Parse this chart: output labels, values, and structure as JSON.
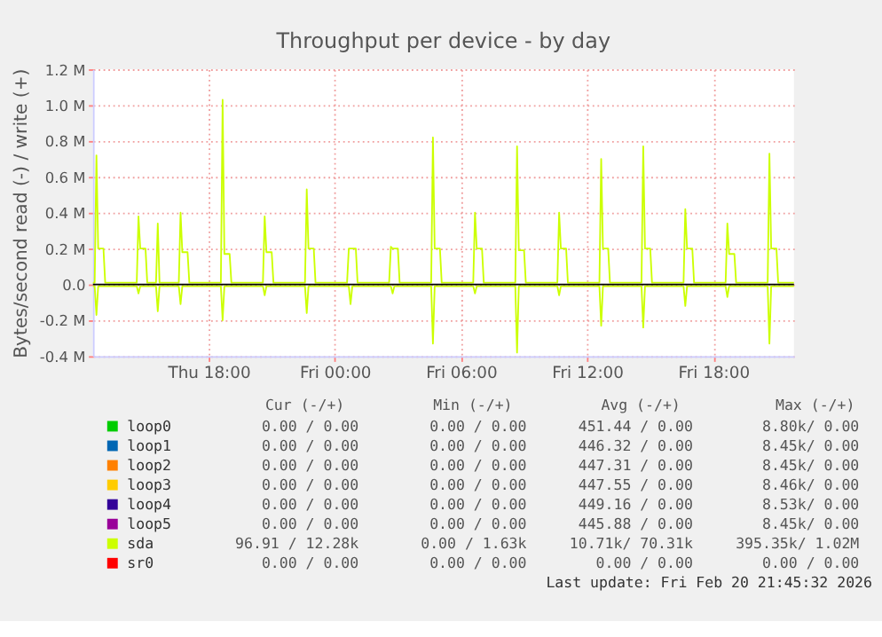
{
  "chart_data": {
    "type": "line",
    "title": "Throughput per device - by day",
    "ylabel": "Bytes/second read (-) / write (+)",
    "xlim": [
      "2026-02-19T12:30",
      "2026-02-20T21:50"
    ],
    "xticks": [
      {
        "value": "2026-02-19T18:00",
        "label": "Thu 18:00"
      },
      {
        "value": "2026-02-20T00:00",
        "label": "Fri 00:00"
      },
      {
        "value": "2026-02-20T06:00",
        "label": "Fri 06:00"
      },
      {
        "value": "2026-02-20T12:00",
        "label": "Fri 12:00"
      },
      {
        "value": "2026-02-20T18:00",
        "label": "Fri 18:00"
      }
    ],
    "ylim": [
      -400000,
      1200000
    ],
    "yticks": [
      {
        "value": -400000,
        "label": "-0.4 M"
      },
      {
        "value": -200000,
        "label": "-0.2 M"
      },
      {
        "value": 0,
        "label": "0.0"
      },
      {
        "value": 200000,
        "label": "0.2 M"
      },
      {
        "value": 400000,
        "label": "0.4 M"
      },
      {
        "value": 600000,
        "label": "0.6 M"
      },
      {
        "value": 800000,
        "label": "0.8 M"
      },
      {
        "value": 1000000,
        "label": "1.0 M"
      },
      {
        "value": 1200000,
        "label": "1.2 M"
      }
    ],
    "grid": true,
    "legend": "bottom",
    "ref_lines": [
      {
        "axis": "y",
        "value": 0,
        "color": "#000000"
      }
    ],
    "series": [
      {
        "name": "loop0",
        "color": "#00cc00"
      },
      {
        "name": "loop1",
        "color": "#0066b3"
      },
      {
        "name": "loop2",
        "color": "#ff8000"
      },
      {
        "name": "loop3",
        "color": "#ffcc00"
      },
      {
        "name": "loop4",
        "color": "#330099"
      },
      {
        "name": "loop5",
        "color": "#990099"
      },
      {
        "name": "sda",
        "color": "#ccff00",
        "x": [
          "2026-02-19T12:30",
          "2026-02-19T12:35",
          "2026-02-19T12:40",
          "2026-02-19T12:45",
          "2026-02-19T13:00",
          "2026-02-19T13:05",
          "2026-02-19T14:35",
          "2026-02-19T14:40",
          "2026-02-19T14:45",
          "2026-02-19T15:00",
          "2026-02-19T15:05",
          "2026-02-19T15:30",
          "2026-02-19T15:35",
          "2026-02-19T15:40",
          "2026-02-19T16:35",
          "2026-02-19T16:40",
          "2026-02-19T16:45",
          "2026-02-19T17:00",
          "2026-02-19T17:05",
          "2026-02-19T18:35",
          "2026-02-19T18:40",
          "2026-02-19T18:45",
          "2026-02-19T19:00",
          "2026-02-19T19:05",
          "2026-02-19T20:35",
          "2026-02-19T20:40",
          "2026-02-19T20:45",
          "2026-02-19T21:00",
          "2026-02-19T21:05",
          "2026-02-19T22:35",
          "2026-02-19T22:40",
          "2026-02-19T22:45",
          "2026-02-19T23:00",
          "2026-02-19T23:05",
          "2026-02-20T00:35",
          "2026-02-20T00:40",
          "2026-02-20T00:45",
          "2026-02-20T01:00",
          "2026-02-20T01:05",
          "2026-02-20T02:35",
          "2026-02-20T02:40",
          "2026-02-20T02:45",
          "2026-02-20T03:00",
          "2026-02-20T03:05",
          "2026-02-20T04:35",
          "2026-02-20T04:40",
          "2026-02-20T04:45",
          "2026-02-20T05:00",
          "2026-02-20T05:05",
          "2026-02-20T06:35",
          "2026-02-20T06:40",
          "2026-02-20T06:45",
          "2026-02-20T07:00",
          "2026-02-20T07:05",
          "2026-02-20T08:35",
          "2026-02-20T08:40",
          "2026-02-20T08:45",
          "2026-02-20T09:00",
          "2026-02-20T09:05",
          "2026-02-20T10:35",
          "2026-02-20T10:40",
          "2026-02-20T10:45",
          "2026-02-20T11:00",
          "2026-02-20T11:05",
          "2026-02-20T12:35",
          "2026-02-20T12:40",
          "2026-02-20T12:45",
          "2026-02-20T13:00",
          "2026-02-20T13:05",
          "2026-02-20T14:35",
          "2026-02-20T14:40",
          "2026-02-20T14:45",
          "2026-02-20T15:00",
          "2026-02-20T15:05",
          "2026-02-20T16:35",
          "2026-02-20T16:40",
          "2026-02-20T16:45",
          "2026-02-20T17:00",
          "2026-02-20T17:05",
          "2026-02-20T18:35",
          "2026-02-20T18:40",
          "2026-02-20T18:45",
          "2026-02-20T19:00",
          "2026-02-20T19:05",
          "2026-02-20T20:35",
          "2026-02-20T20:40",
          "2026-02-20T20:45",
          "2026-02-20T21:00",
          "2026-02-20T21:05",
          "2026-02-20T21:50"
        ],
        "values": [
          10000,
          10000,
          720000,
          200000,
          200000,
          10000,
          10000,
          380000,
          200000,
          200000,
          10000,
          10000,
          340000,
          10000,
          10000,
          400000,
          180000,
          180000,
          10000,
          10000,
          1030000,
          170000,
          170000,
          10000,
          10000,
          380000,
          180000,
          180000,
          10000,
          10000,
          530000,
          200000,
          200000,
          10000,
          10000,
          200000,
          200000,
          200000,
          10000,
          10000,
          210000,
          200000,
          200000,
          10000,
          10000,
          820000,
          200000,
          200000,
          10000,
          10000,
          400000,
          200000,
          200000,
          10000,
          10000,
          770000,
          190000,
          190000,
          10000,
          10000,
          400000,
          200000,
          200000,
          10000,
          10000,
          700000,
          200000,
          200000,
          10000,
          10000,
          770000,
          200000,
          200000,
          10000,
          10000,
          420000,
          200000,
          200000,
          10000,
          10000,
          340000,
          170000,
          170000,
          10000,
          10000,
          730000,
          200000,
          200000,
          10000,
          10000
        ]
      },
      {
        "name": "sr0",
        "color": "#ff0000"
      },
      {
        "color": "#ccff00",
        "x": [
          "2026-02-19T12:30",
          "2026-02-19T12:35",
          "2026-02-19T12:40",
          "2026-02-19T12:45",
          "2026-02-19T14:35",
          "2026-02-19T14:40",
          "2026-02-19T14:45",
          "2026-02-19T15:30",
          "2026-02-19T15:35",
          "2026-02-19T15:40",
          "2026-02-19T16:35",
          "2026-02-19T16:40",
          "2026-02-19T16:45",
          "2026-02-19T18:35",
          "2026-02-19T18:40",
          "2026-02-19T18:45",
          "2026-02-19T20:35",
          "2026-02-19T20:40",
          "2026-02-19T20:45",
          "2026-02-19T22:35",
          "2026-02-19T22:40",
          "2026-02-19T22:45",
          "2026-02-20T00:40",
          "2026-02-20T00:45",
          "2026-02-20T00:50",
          "2026-02-20T02:40",
          "2026-02-20T02:45",
          "2026-02-20T02:50",
          "2026-02-20T04:35",
          "2026-02-20T04:40",
          "2026-02-20T04:45",
          "2026-02-20T06:35",
          "2026-02-20T06:40",
          "2026-02-20T06:45",
          "2026-02-20T08:35",
          "2026-02-20T08:40",
          "2026-02-20T08:45",
          "2026-02-20T10:35",
          "2026-02-20T10:40",
          "2026-02-20T10:45",
          "2026-02-20T12:35",
          "2026-02-20T12:40",
          "2026-02-20T12:45",
          "2026-02-20T14:35",
          "2026-02-20T14:40",
          "2026-02-20T14:45",
          "2026-02-20T16:35",
          "2026-02-20T16:40",
          "2026-02-20T16:45",
          "2026-02-20T18:35",
          "2026-02-20T18:40",
          "2026-02-20T18:45",
          "2026-02-20T20:35",
          "2026-02-20T20:40",
          "2026-02-20T20:45",
          "2026-02-20T21:50"
        ],
        "values": [
          -10000,
          -10000,
          -170000,
          -10000,
          -10000,
          -50000,
          -10000,
          -10000,
          -150000,
          -10000,
          -10000,
          -110000,
          -10000,
          -10000,
          -200000,
          -10000,
          -10000,
          -60000,
          -10000,
          -10000,
          -160000,
          -10000,
          -10000,
          -110000,
          -10000,
          -10000,
          -50000,
          -10000,
          -10000,
          -330000,
          -10000,
          -10000,
          -50000,
          -10000,
          -10000,
          -380000,
          -10000,
          -10000,
          -60000,
          -10000,
          -10000,
          -230000,
          -10000,
          -10000,
          -240000,
          -10000,
          -10000,
          -120000,
          -10000,
          -10000,
          -70000,
          -10000,
          -10000,
          -330000,
          -10000,
          -10000
        ]
      }
    ],
    "annotations": [
      "Cur (-/+)",
      "Min (-/+)",
      "Avg (-/+)",
      "Max (-/+)",
      "0.00 /  0.00",
      "0.00 /  0.00",
      "451.44 /  0.00",
      "8.80k/  0.00",
      "0.00 /  0.00",
      "0.00 /  0.00",
      "446.32 /  0.00",
      "8.45k/  0.00",
      "0.00 /  0.00",
      "0.00 /  0.00",
      "447.31 /  0.00",
      "8.45k/  0.00",
      "0.00 /  0.00",
      "0.00 /  0.00",
      "447.55 /  0.00",
      "8.46k/  0.00",
      "0.00 /  0.00",
      "0.00 /  0.00",
      "449.16 /  0.00",
      "8.53k/  0.00",
      "0.00 /  0.00",
      "0.00 /  0.00",
      "445.88 /  0.00",
      "8.45k/  0.00",
      "96.91 / 12.28k",
      "0.00 /  1.63k",
      "10.71k/ 70.31k",
      "395.35k/  1.02M",
      "0.00 /  0.00",
      "0.00 /  0.00",
      "0.00 /  0.00",
      "0.00 /  0.00",
      "Last update: Fri Feb 20 21:45:32 2026"
    ]
  }
}
